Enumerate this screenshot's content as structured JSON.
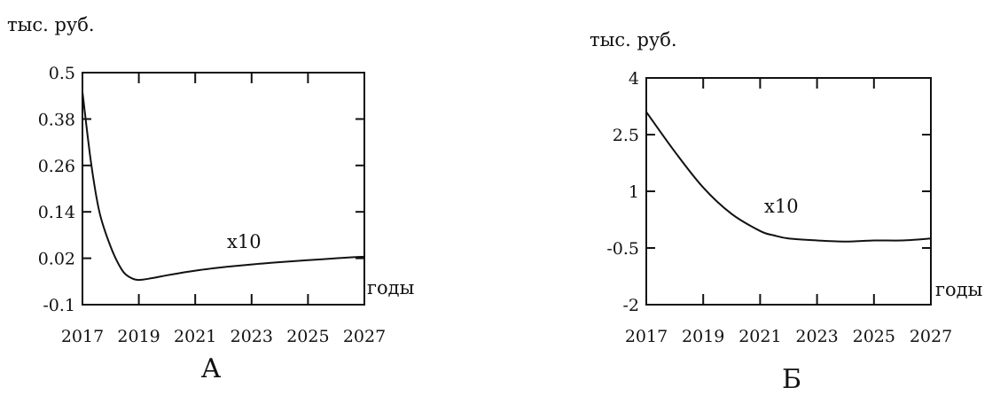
{
  "chart_data": [
    {
      "type": "line",
      "panel_label": "А",
      "ylabel": "тыс. руб.",
      "xlabel": "годы",
      "ylim": [
        -0.1,
        0.5
      ],
      "xlim": [
        2017,
        2027
      ],
      "y_ticks": [
        "0.5",
        "0.38",
        "0.26",
        "0.14",
        "0.02",
        "-0.1"
      ],
      "x_ticks": [
        "2017",
        "2019",
        "2021",
        "2023",
        "2025",
        "2027"
      ],
      "grid": false,
      "series": [
        {
          "label": "x10",
          "x": [
            2017.0,
            2017.3,
            2017.6,
            2018.0,
            2018.4,
            2018.7,
            2019.0,
            2019.5,
            2020.0,
            2021.0,
            2022.0,
            2023.0,
            2024.0,
            2025.0,
            2026.0,
            2027.0
          ],
          "y": [
            0.45,
            0.27,
            0.14,
            0.05,
            -0.01,
            -0.03,
            -0.036,
            -0.031,
            -0.024,
            -0.012,
            -0.003,
            0.004,
            0.01,
            0.015,
            0.02,
            0.024
          ]
        }
      ]
    },
    {
      "type": "line",
      "panel_label": "Б",
      "ylabel": "тыс. руб.",
      "xlabel": "годы",
      "ylim": [
        -2,
        4
      ],
      "xlim": [
        2017,
        2027
      ],
      "y_ticks": [
        "4",
        "2.5",
        "1",
        "-0.5",
        "-2"
      ],
      "x_ticks": [
        "2017",
        "2019",
        "2021",
        "2023",
        "2025",
        "2027"
      ],
      "grid": false,
      "series": [
        {
          "label": "x10",
          "x": [
            2017.0,
            2018.0,
            2019.0,
            2020.0,
            2021.0,
            2021.5,
            2022.0,
            2023.0,
            2024.0,
            2025.0,
            2026.0,
            2027.0
          ],
          "y": [
            3.1,
            2.05,
            1.1,
            0.4,
            -0.05,
            -0.17,
            -0.25,
            -0.3,
            -0.33,
            -0.3,
            -0.3,
            -0.25
          ]
        }
      ]
    }
  ]
}
